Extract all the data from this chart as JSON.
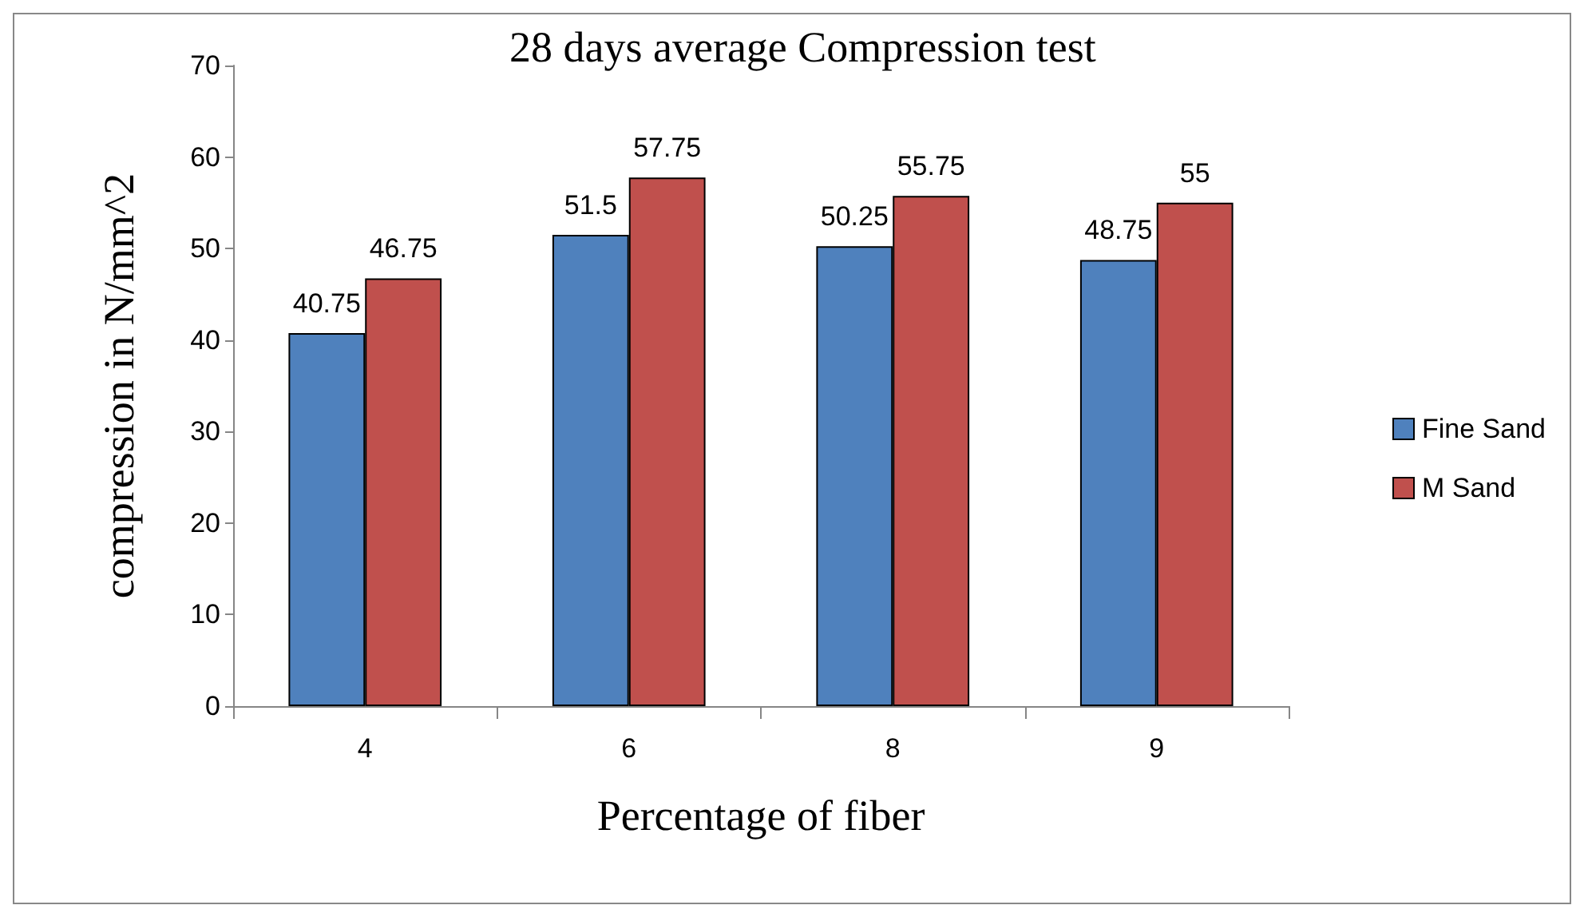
{
  "chart_data": {
    "type": "bar",
    "title": "28 days average Compression test",
    "xlabel": "Percentage of fiber",
    "ylabel": "compression in N/mm^2",
    "categories": [
      "4",
      "6",
      "8",
      "9"
    ],
    "series": [
      {
        "name": "Fine Sand",
        "color": "#4f81bd",
        "values": [
          40.75,
          51.5,
          50.25,
          48.75
        ]
      },
      {
        "name": "M Sand",
        "color": "#c0504d",
        "values": [
          46.75,
          57.75,
          55.75,
          55
        ]
      }
    ],
    "ylim": [
      0,
      70
    ],
    "yticks": [
      0,
      10,
      20,
      30,
      40,
      50,
      60,
      70
    ],
    "grid": false,
    "legend": "right",
    "data_labels": true
  }
}
